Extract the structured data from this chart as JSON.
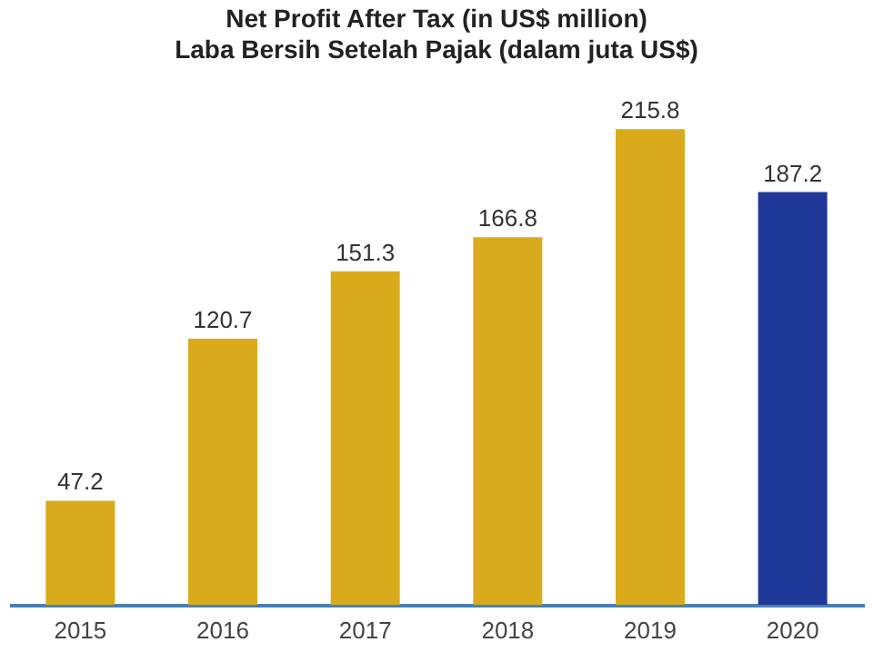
{
  "chart_data": {
    "type": "bar",
    "title": "Net Profit After Tax (in US$ million)",
    "subtitle": "Laba Bersih Setelah Pajak (dalam juta US$)",
    "categories": [
      "2015",
      "2016",
      "2017",
      "2018",
      "2019",
      "2020"
    ],
    "values": [
      47.2,
      120.7,
      151.3,
      166.8,
      215.8,
      187.2
    ],
    "colors": [
      "#d9ab1c",
      "#d9ab1c",
      "#d9ab1c",
      "#d9ab1c",
      "#d9ab1c",
      "#1f3796"
    ],
    "data_labels": true,
    "tick_labels": "x",
    "grid": false
  }
}
